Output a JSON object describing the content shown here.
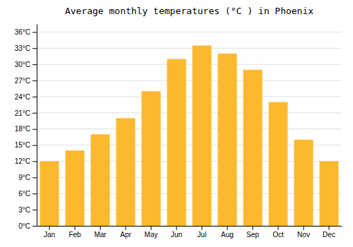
{
  "chart_data": {
    "type": "bar",
    "title": "Average monthly temperatures (°C ) in Phoenix",
    "categories": [
      "Jan",
      "Feb",
      "Mar",
      "Apr",
      "May",
      "Jun",
      "Jul",
      "Aug",
      "Sep",
      "Oct",
      "Nov",
      "Dec"
    ],
    "values": [
      12,
      14,
      17,
      20,
      25,
      31,
      33.5,
      32,
      29,
      23,
      16,
      12
    ],
    "color": "#FDB92E",
    "ylim": [
      0,
      37.5
    ],
    "yticks": [
      {
        "value": 0,
        "label": "0°C"
      },
      {
        "value": 3,
        "label": "3°C"
      },
      {
        "value": 6,
        "label": "6°C"
      },
      {
        "value": 9,
        "label": "9°C"
      },
      {
        "value": 12,
        "label": "12°C"
      },
      {
        "value": 15,
        "label": "15°C"
      },
      {
        "value": 18,
        "label": "18°C"
      },
      {
        "value": 21,
        "label": "21°C"
      },
      {
        "value": 24,
        "label": "24°C"
      },
      {
        "value": 27,
        "label": "27°C"
      },
      {
        "value": 30,
        "label": "30°C"
      },
      {
        "value": 33,
        "label": "33°C"
      },
      {
        "value": 36,
        "label": "36°C"
      }
    ],
    "grid": true
  }
}
